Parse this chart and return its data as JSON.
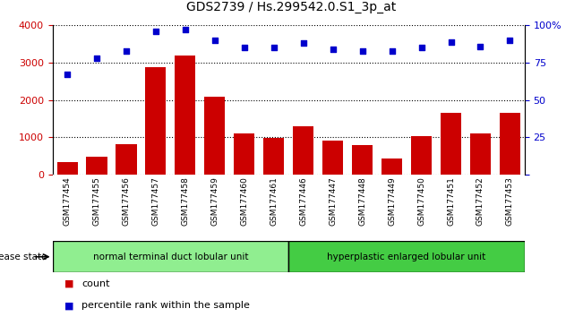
{
  "title": "GDS2739 / Hs.299542.0.S1_3p_at",
  "categories": [
    "GSM177454",
    "GSM177455",
    "GSM177456",
    "GSM177457",
    "GSM177458",
    "GSM177459",
    "GSM177460",
    "GSM177461",
    "GSM177446",
    "GSM177447",
    "GSM177448",
    "GSM177449",
    "GSM177450",
    "GSM177451",
    "GSM177452",
    "GSM177453"
  ],
  "counts": [
    320,
    470,
    800,
    2880,
    3180,
    2080,
    1100,
    970,
    1280,
    900,
    790,
    420,
    1020,
    1660,
    1100,
    1660
  ],
  "percentiles": [
    67,
    78,
    83,
    96,
    97,
    90,
    85,
    85,
    88,
    84,
    83,
    83,
    85,
    89,
    86,
    90
  ],
  "bar_color": "#cc0000",
  "dot_color": "#0000cc",
  "ylim_left": [
    0,
    4000
  ],
  "ylim_right": [
    0,
    100
  ],
  "yticks_left": [
    0,
    1000,
    2000,
    3000,
    4000
  ],
  "yticks_right": [
    0,
    25,
    50,
    75,
    100
  ],
  "group1_label": "normal terminal duct lobular unit",
  "group1_count": 8,
  "group2_label": "hyperplastic enlarged lobular unit",
  "group2_count": 8,
  "group1_color": "#90ee90",
  "group2_color": "#44cc44",
  "disease_state_label": "disease state",
  "legend_count_label": "count",
  "legend_percentile_label": "percentile rank within the sample",
  "background_color": "#ffffff",
  "plot_bg_color": "#ffffff",
  "tick_label_color_left": "#cc0000",
  "tick_label_color_right": "#0000cc",
  "grid_color": "#000000",
  "xlabel_bg": "#c8c8c8"
}
